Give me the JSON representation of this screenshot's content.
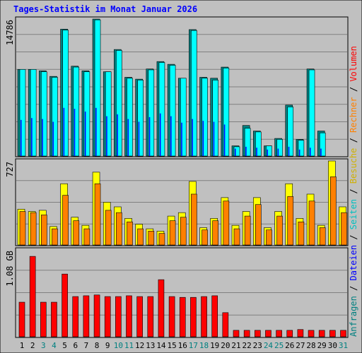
{
  "title": "Tages-Statistik im Monat Januar 2026",
  "colors": {
    "background": "#c0c0c0",
    "title": "#0000ff",
    "grid": "#808080",
    "anfragen_light": "#00ffff",
    "anfragen_dark": "#008080",
    "dateien": "#0000ff",
    "besuche": "#ffff00",
    "rechner": "#ff8000",
    "volumen": "#ff0000",
    "weekend_label": "#008080",
    "weekday_label": "#000000"
  },
  "legend_right": [
    {
      "text": "Anfragen",
      "color": "#008080"
    },
    {
      "text": " / ",
      "color": "#000000"
    },
    {
      "text": "Dateien",
      "color": "#0000ff"
    },
    {
      "text": " / ",
      "color": "#000000"
    },
    {
      "text": "Seiten",
      "color": "#00c0c0"
    },
    {
      "text": " / ",
      "color": "#000000"
    },
    {
      "text": "Besuche",
      "color": "#d0b000"
    },
    {
      "text": " / ",
      "color": "#000000"
    },
    {
      "text": "Rechner",
      "color": "#ff8000"
    },
    {
      "text": " / ",
      "color": "#000000"
    },
    {
      "text": "Volumen",
      "color": "#ff0000"
    }
  ],
  "chart_data": {
    "type": "bar",
    "categories": [
      "1",
      "2",
      "3",
      "4",
      "5",
      "6",
      "7",
      "8",
      "9",
      "10",
      "11",
      "12",
      "13",
      "14",
      "15",
      "16",
      "17",
      "18",
      "19",
      "20",
      "21",
      "22",
      "23",
      "24",
      "25",
      "26",
      "27",
      "28",
      "29",
      "30",
      "31"
    ],
    "weekend_days": [
      "3",
      "4",
      "10",
      "11",
      "17",
      "18",
      "24",
      "25",
      "31"
    ],
    "panels": [
      {
        "name": "requests",
        "max_label": "14786",
        "ymax": 14786,
        "series": [
          {
            "name": "Anfragen",
            "values": [
              9350,
              9350,
              9200,
              8600,
              13700,
              9700,
              9200,
              14786,
              9100,
              11500,
              8500,
              8300,
              9400,
              10200,
              9900,
              8400,
              13650,
              8500,
              8400,
              9600,
              1100,
              3300,
              2700,
              1100,
              1900,
              5500,
              1800,
              9400,
              2700,
              0,
              0
            ]
          },
          {
            "name": "Dateien",
            "values": [
              9350,
              9350,
              9100,
              8500,
              13600,
              9600,
              9100,
              14700,
              9100,
              11400,
              8400,
              8200,
              9300,
              10100,
              9800,
              8400,
              13550,
              8400,
              8200,
              9500,
              1000,
              3000,
              2600,
              1100,
              1800,
              5300,
              1700,
              9300,
              2500,
              0,
              0
            ]
          },
          {
            "name": "Seiten",
            "values": [
              3900,
              4100,
              4000,
              3700,
              5200,
              5100,
              4800,
              5200,
              4300,
              4500,
              4000,
              3700,
              4200,
              4600,
              4300,
              3600,
              4000,
              3800,
              3700,
              3400,
              800,
              1000,
              900,
              700,
              800,
              1000,
              700,
              900,
              800,
              0,
              0
            ]
          }
        ]
      },
      {
        "name": "visits",
        "max_label": "727",
        "ymax": 727,
        "series": [
          {
            "name": "Besuche",
            "values": [
              310,
              290,
              300,
              160,
              530,
              240,
              170,
              630,
              370,
              330,
              230,
              180,
              140,
              120,
              250,
              280,
              550,
              150,
              230,
              410,
              170,
              290,
              410,
              150,
              290,
              530,
              230,
              440,
              170,
              727,
              330
            ]
          },
          {
            "name": "Rechner",
            "values": [
              290,
              280,
              260,
              140,
              430,
              210,
              140,
              530,
              300,
              280,
              200,
              140,
              120,
              100,
              210,
              240,
              440,
              130,
              210,
              380,
              140,
              250,
              350,
              130,
              250,
              420,
              200,
              380,
              150,
              590,
              280
            ]
          }
        ]
      },
      {
        "name": "volume",
        "max_label": "1.08 GB",
        "ymax": 1.08,
        "series": [
          {
            "name": "Volumen",
            "values": [
              0.43,
              1.0,
              0.43,
              0.43,
              0.78,
              0.5,
              0.51,
              0.52,
              0.5,
              0.5,
              0.51,
              0.5,
              0.5,
              0.71,
              0.5,
              0.49,
              0.49,
              0.5,
              0.51,
              0.3,
              0.08,
              0.08,
              0.08,
              0.08,
              0.08,
              0.08,
              0.09,
              0.08,
              0.08,
              0.08,
              0.08
            ]
          }
        ]
      }
    ]
  }
}
